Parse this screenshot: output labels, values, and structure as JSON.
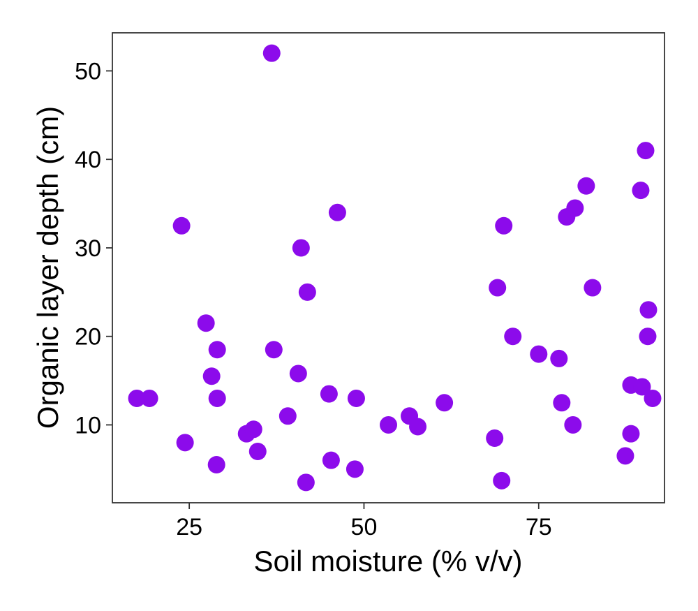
{
  "chart_data": {
    "type": "scatter",
    "xlabel": "Soil moisture (% v/v)",
    "ylabel": "Organic layer depth (cm)",
    "xlim": [
      14,
      93
    ],
    "ylim": [
      1.2,
      54.3
    ],
    "x_ticks": [
      25,
      50,
      75
    ],
    "y_ticks": [
      10,
      20,
      30,
      40,
      50
    ],
    "grid": false,
    "legend": "none",
    "point_color": "#8C0BEB",
    "points": [
      {
        "x": 17.5,
        "y": 13.0
      },
      {
        "x": 19.3,
        "y": 13.0
      },
      {
        "x": 23.9,
        "y": 32.5
      },
      {
        "x": 24.4,
        "y": 8.0
      },
      {
        "x": 27.4,
        "y": 21.5
      },
      {
        "x": 28.2,
        "y": 15.5
      },
      {
        "x": 29.0,
        "y": 18.5
      },
      {
        "x": 29.0,
        "y": 13.0
      },
      {
        "x": 28.9,
        "y": 5.5
      },
      {
        "x": 33.2,
        "y": 9.0
      },
      {
        "x": 34.2,
        "y": 9.5
      },
      {
        "x": 34.8,
        "y": 7.0
      },
      {
        "x": 36.8,
        "y": 52.0
      },
      {
        "x": 37.1,
        "y": 18.5
      },
      {
        "x": 39.1,
        "y": 11.0
      },
      {
        "x": 40.6,
        "y": 15.8
      },
      {
        "x": 41.0,
        "y": 30.0
      },
      {
        "x": 41.9,
        "y": 25.0
      },
      {
        "x": 41.7,
        "y": 3.5
      },
      {
        "x": 45.0,
        "y": 13.5
      },
      {
        "x": 45.3,
        "y": 6.0
      },
      {
        "x": 46.2,
        "y": 34.0
      },
      {
        "x": 48.7,
        "y": 5.0
      },
      {
        "x": 48.9,
        "y": 13.0
      },
      {
        "x": 53.5,
        "y": 10.0
      },
      {
        "x": 56.5,
        "y": 11.0
      },
      {
        "x": 57.7,
        "y": 9.8
      },
      {
        "x": 61.5,
        "y": 12.5
      },
      {
        "x": 68.7,
        "y": 8.5
      },
      {
        "x": 69.1,
        "y": 25.5
      },
      {
        "x": 69.7,
        "y": 3.7
      },
      {
        "x": 70.0,
        "y": 32.5
      },
      {
        "x": 71.3,
        "y": 20.0
      },
      {
        "x": 75.0,
        "y": 18.0
      },
      {
        "x": 77.9,
        "y": 17.5
      },
      {
        "x": 78.3,
        "y": 12.5
      },
      {
        "x": 79.0,
        "y": 33.5
      },
      {
        "x": 79.9,
        "y": 10.0
      },
      {
        "x": 80.2,
        "y": 34.5
      },
      {
        "x": 81.8,
        "y": 37.0
      },
      {
        "x": 82.7,
        "y": 25.5
      },
      {
        "x": 87.4,
        "y": 6.5
      },
      {
        "x": 88.2,
        "y": 14.5
      },
      {
        "x": 88.2,
        "y": 9.0
      },
      {
        "x": 89.6,
        "y": 36.5
      },
      {
        "x": 89.8,
        "y": 14.3
      },
      {
        "x": 90.3,
        "y": 41.0
      },
      {
        "x": 90.6,
        "y": 20.0
      },
      {
        "x": 90.7,
        "y": 23.0
      },
      {
        "x": 91.3,
        "y": 13.0
      }
    ]
  }
}
